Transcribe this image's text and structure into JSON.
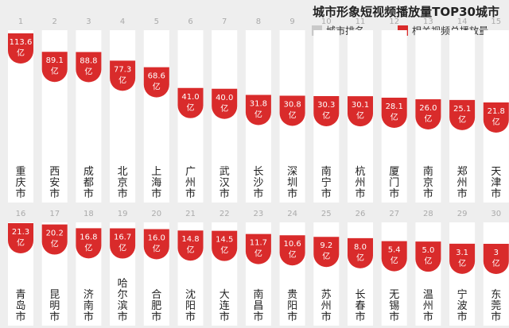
{
  "title": "城市形象短视频播放量TOP30城市",
  "legend": [
    {
      "label": "城市排名",
      "color": "#c9c9c9"
    },
    {
      "label": "相关视频总播放量",
      "color": "#d92b2b"
    }
  ],
  "colors": {
    "bar": "#ffffff",
    "value": "#d92b2b",
    "rank": "#aaaaaa",
    "city": "#222222"
  },
  "value_unit": "亿",
  "chart_data": {
    "type": "bar",
    "title": "城市形象短视频播放量TOP30城市",
    "rows": [
      {
        "ranks": [
          "1",
          "2",
          "3",
          "4",
          "5",
          "6",
          "7",
          "8",
          "9",
          "10",
          "11",
          "12",
          "13",
          "14",
          "15"
        ],
        "categories": [
          "重庆市",
          "西安市",
          "成都市",
          "北京市",
          "上海市",
          "广州市",
          "武汉市",
          "长沙市",
          "深圳市",
          "南宁市",
          "杭州市",
          "厦门市",
          "南京市",
          "郑州市",
          "天津市"
        ],
        "values": [
          113.6,
          89.1,
          88.8,
          77.3,
          68.6,
          41.0,
          40.0,
          31.8,
          30.8,
          30.3,
          30.1,
          28.1,
          26.0,
          25.1,
          21.8
        ],
        "labels": [
          "113.6",
          "89.1",
          "88.8",
          "77.3",
          "68.6",
          "41.0",
          "40.0",
          "31.8",
          "30.8",
          "30.3",
          "30.1",
          "28.1",
          "26.0",
          "25.1",
          "21.8"
        ]
      },
      {
        "ranks": [
          "16",
          "17",
          "18",
          "19",
          "20",
          "21",
          "22",
          "23",
          "24",
          "25",
          "26",
          "27",
          "28",
          "29",
          "30"
        ],
        "categories": [
          "青岛市",
          "昆明市",
          "济南市",
          "哈尔滨市",
          "合肥市",
          "沈阳市",
          "大连市",
          "南昌市",
          "贵阳市",
          "苏州市",
          "长春市",
          "无锡市",
          "温州市",
          "宁波市",
          "东莞市"
        ],
        "values": [
          21.3,
          20.2,
          16.8,
          16.7,
          16.0,
          14.8,
          14.5,
          11.7,
          10.6,
          9.2,
          8.0,
          5.4,
          5.0,
          3.1,
          3
        ],
        "labels": [
          "21.3",
          "20.2",
          "16.8",
          "16.7",
          "16.0",
          "14.8",
          "14.5",
          "11.7",
          "10.6",
          "9.2",
          "8.0",
          "5.4",
          "5.0",
          "3.1",
          "3"
        ]
      }
    ]
  }
}
